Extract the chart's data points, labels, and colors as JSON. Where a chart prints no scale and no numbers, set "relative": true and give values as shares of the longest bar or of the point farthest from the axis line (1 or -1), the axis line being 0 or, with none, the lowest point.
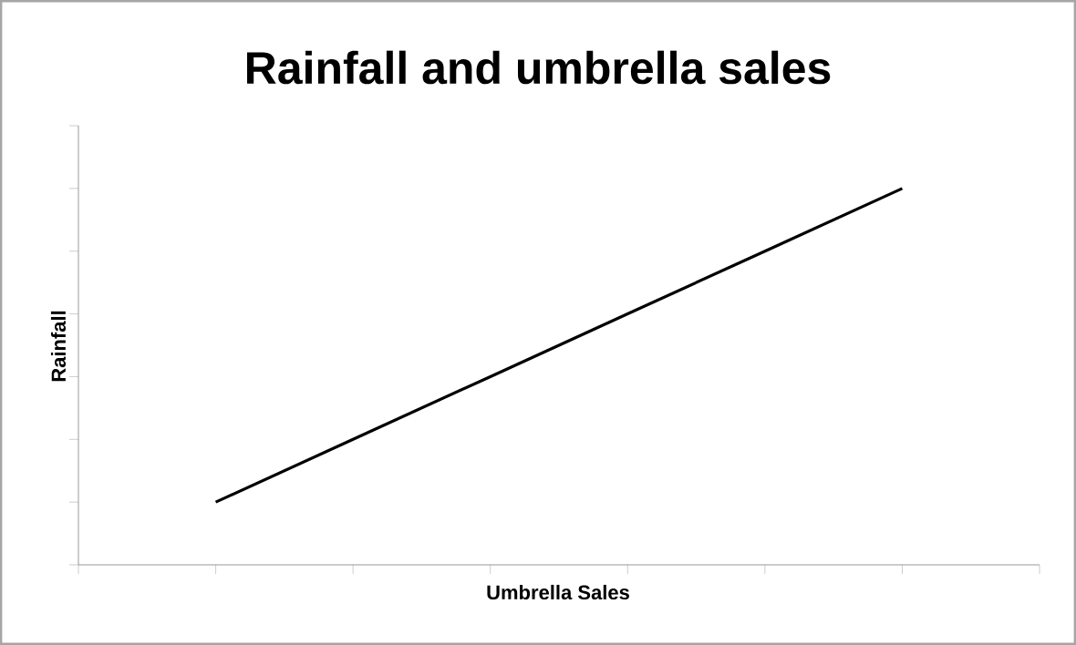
{
  "chart_data": {
    "type": "line",
    "title": "Rainfall and umbrella sales",
    "xlabel": "Umbrella Sales",
    "ylabel": "Rainfall",
    "relative": true,
    "categories": [
      null,
      null,
      null,
      null,
      null,
      null
    ],
    "series": [
      {
        "color": "#000000",
        "values": [
          0.1667,
          0.3333,
          0.5,
          0.6667,
          0.8333,
          1
        ]
      }
    ],
    "grid": false,
    "marker": "none",
    "line_style": "solid"
  }
}
